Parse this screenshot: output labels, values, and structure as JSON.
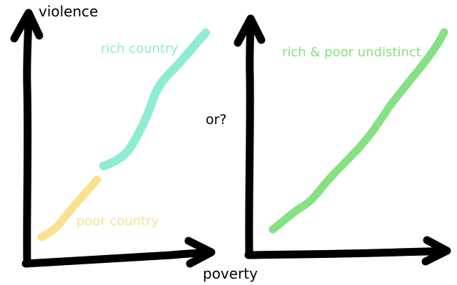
{
  "labels": {
    "y_axis": "violence",
    "x_axis": "poverty",
    "or": "or?",
    "rich": "rich country",
    "poor": "poor country",
    "undistinct": "rich & poor undistinct"
  },
  "colors": {
    "axis": "#000000",
    "rich": "#8eebd4",
    "poor": "#fbe08e",
    "undistinct": "#86e084"
  }
}
